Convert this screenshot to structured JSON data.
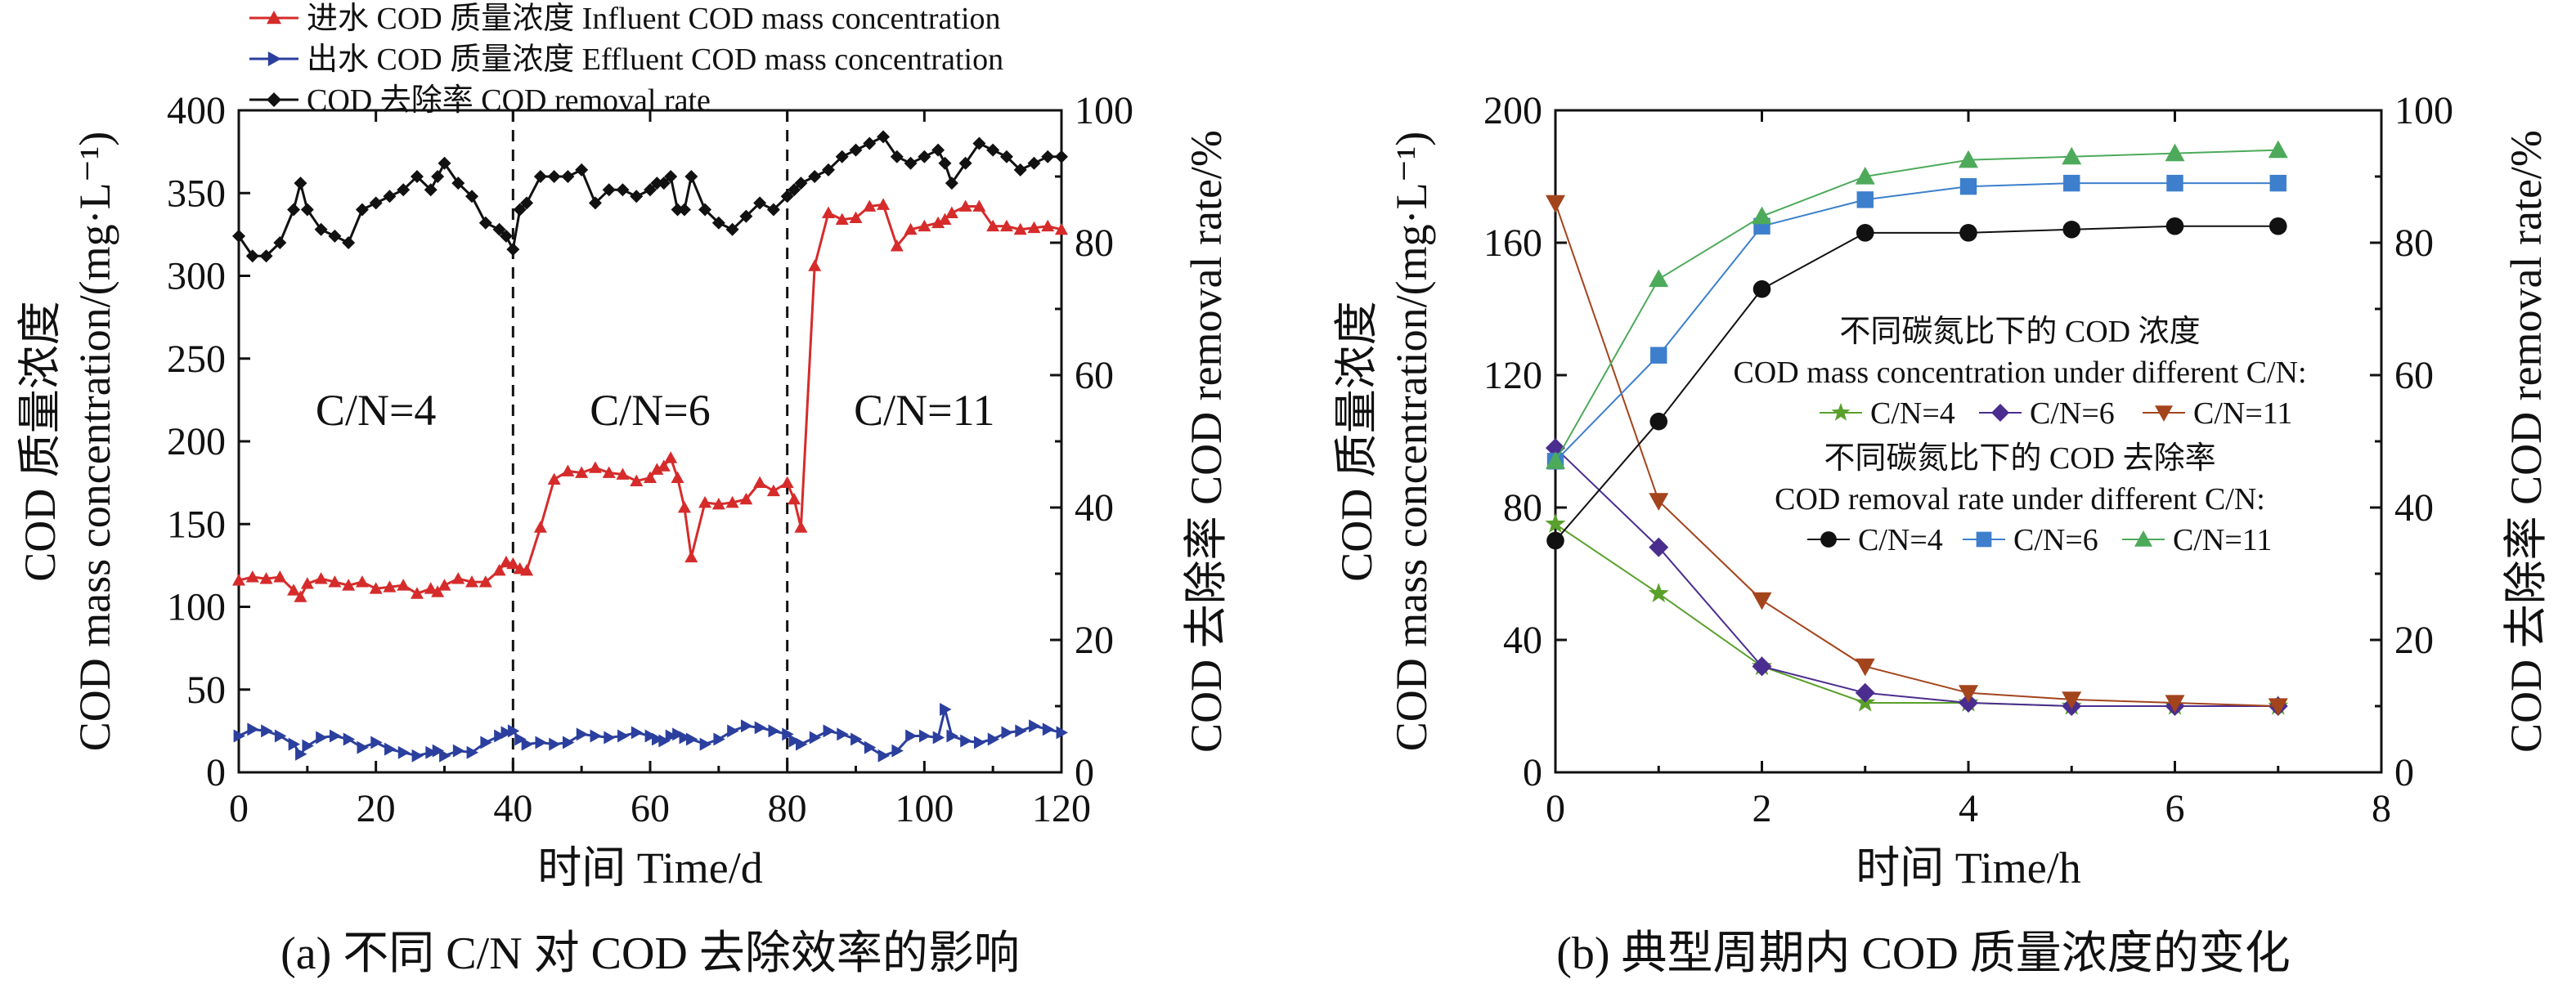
{
  "chart_data": [
    {
      "type": "line",
      "panel": "a",
      "caption": "(a) 不同 C/N 对 COD 去除效率的影响",
      "xlabel": "时间 Time/d",
      "ylabel_left_cn": "COD 质量浓度",
      "ylabel_left_en": "COD mass concentration/(mg·L⁻¹)",
      "ylabel_right": "COD 去除率 COD removal rate/%",
      "xlim": [
        0,
        120
      ],
      "ylim_left": [
        0,
        400
      ],
      "ylim_right": [
        0,
        100
      ],
      "xticks": [
        "0",
        "20",
        "40",
        "60",
        "80",
        "100",
        "120"
      ],
      "yticks_left": [
        "0",
        "50",
        "100",
        "150",
        "200",
        "250",
        "300",
        "350",
        "400"
      ],
      "yticks_right": [
        "0",
        "20",
        "40",
        "60",
        "80",
        "100"
      ],
      "phase_boundaries": [
        40,
        80
      ],
      "phase_labels": [
        {
          "text": "C/N=4",
          "x": 20
        },
        {
          "text": "C/N=6",
          "x": 60
        },
        {
          "text": "C/N=11",
          "x": 100
        }
      ],
      "legend": [
        {
          "name": "进水 COD 质量浓度 Influent COD mass concentration",
          "color": "#d62b2b",
          "marker": "triangle-up"
        },
        {
          "name": "出水 COD 质量浓度 Effluent COD mass concentration",
          "color": "#2b3f9e",
          "marker": "triangle-right"
        },
        {
          "name": "COD 去除率 COD removal rate",
          "color": "#111111",
          "marker": "diamond"
        }
      ],
      "x": [
        0,
        2,
        4,
        6,
        8,
        9,
        10,
        12,
        14,
        16,
        18,
        20,
        22,
        24,
        26,
        28,
        29,
        30,
        32,
        34,
        36,
        38,
        39,
        40,
        41,
        42,
        44,
        46,
        48,
        50,
        52,
        54,
        56,
        58,
        60,
        61,
        62,
        63,
        64,
        65,
        66,
        68,
        70,
        72,
        74,
        76,
        78,
        80,
        81,
        82,
        84,
        86,
        88,
        90,
        92,
        94,
        96,
        98,
        100,
        102,
        103,
        104,
        106,
        108,
        110,
        112,
        114,
        116,
        118,
        120
      ],
      "series": [
        {
          "name": "进水 COD 质量浓度 Influent COD mass concentration",
          "axis": "left",
          "color": "#d62b2b",
          "values": [
            116,
            118,
            117,
            118,
            110,
            106,
            114,
            117,
            115,
            113,
            115,
            111,
            112,
            113,
            108,
            111,
            109,
            113,
            117,
            115,
            115,
            122,
            127,
            126,
            123,
            122,
            148,
            177,
            182,
            181,
            184,
            181,
            180,
            176,
            178,
            183,
            185,
            190,
            178,
            160,
            130,
            163,
            162,
            163,
            165,
            175,
            170,
            175,
            165,
            148,
            306,
            338,
            334,
            335,
            342,
            343,
            318,
            328,
            330,
            332,
            334,
            338,
            342,
            342,
            330,
            330,
            328,
            329,
            330,
            328
          ]
        },
        {
          "name": "出水 COD 质量浓度 Effluent COD mass concentration",
          "axis": "left",
          "color": "#2b3f9e",
          "values": [
            22,
            26,
            25,
            22,
            17,
            11,
            16,
            21,
            22,
            20,
            15,
            18,
            14,
            12,
            10,
            12,
            13,
            10,
            13,
            12,
            18,
            22,
            24,
            25,
            20,
            17,
            18,
            17,
            18,
            23,
            22,
            21,
            22,
            24,
            22,
            20,
            19,
            22,
            23,
            21,
            20,
            17,
            20,
            25,
            28,
            27,
            25,
            23,
            19,
            17,
            21,
            25,
            23,
            20,
            15,
            10,
            13,
            22,
            22,
            21,
            38,
            22,
            19,
            18,
            20,
            24,
            25,
            28,
            26,
            24
          ]
        },
        {
          "name": "COD 去除率 COD removal rate",
          "axis": "right",
          "color": "#111111",
          "values": [
            81,
            78,
            78,
            80,
            85,
            89,
            85,
            82,
            81,
            80,
            85,
            86,
            87,
            88,
            90,
            88,
            90,
            92,
            89,
            87,
            83,
            82,
            81,
            79,
            85,
            86,
            90,
            90,
            90,
            91,
            86,
            88,
            88,
            87,
            88,
            89,
            89,
            90,
            85,
            85,
            90,
            85,
            83,
            82,
            84,
            86,
            85,
            87,
            88,
            89,
            90,
            91,
            93,
            94,
            95,
            96,
            93,
            92,
            93,
            94,
            92,
            89,
            92,
            95,
            94,
            93,
            91,
            92,
            93,
            93
          ]
        }
      ]
    },
    {
      "type": "line",
      "panel": "b",
      "caption": "(b) 典型周期内 COD 质量浓度的变化",
      "xlabel": "时间 Time/h",
      "ylabel_left_cn": "COD 质量浓度",
      "ylabel_left_en": "COD mass concentration/(mg·L⁻¹)",
      "ylabel_right": "COD 去除率 COD removal rate/%",
      "xlim": [
        0,
        8
      ],
      "ylim_left": [
        0,
        200
      ],
      "ylim_right": [
        0,
        100
      ],
      "xticks": [
        "0",
        "2",
        "4",
        "6",
        "8"
      ],
      "yticks_left": [
        "0",
        "40",
        "80",
        "120",
        "160",
        "200"
      ],
      "yticks_right": [
        "0",
        "20",
        "40",
        "60",
        "80",
        "100"
      ],
      "legend_group_1_title_cn": "不同碳氮比下的 COD 浓度",
      "legend_group_1_title_en": "COD mass concentration under different C/N:",
      "legend_group_2_title_cn": "不同碳氮比下的 COD 去除率",
      "legend_group_2_title_en": "COD removal rate under different C/N:",
      "x": [
        0,
        1,
        2,
        3,
        4,
        5,
        6,
        7
      ],
      "series": [
        {
          "name": "C/N=4",
          "group": "concentration",
          "axis": "left",
          "color": "#5aa02c",
          "marker": "star",
          "values": [
            75,
            54,
            32,
            21,
            21,
            20,
            20,
            20
          ]
        },
        {
          "name": "C/N=6",
          "group": "concentration",
          "axis": "left",
          "color": "#4b2d8f",
          "marker": "diamond",
          "values": [
            98,
            68,
            32,
            24,
            21,
            20,
            20,
            20
          ]
        },
        {
          "name": "C/N=11",
          "group": "concentration",
          "axis": "left",
          "color": "#a3441c",
          "marker": "triangle-down",
          "values": [
            172,
            82,
            52,
            32,
            24,
            22,
            21,
            20
          ]
        },
        {
          "name": "C/N=4",
          "group": "removal",
          "axis": "right",
          "color": "#111111",
          "marker": "circle",
          "values": [
            35,
            53,
            73,
            81.5,
            81.5,
            82,
            82.5,
            82.5
          ]
        },
        {
          "name": "C/N=6",
          "group": "removal",
          "axis": "right",
          "color": "#3d7fcc",
          "marker": "square",
          "values": [
            47,
            63,
            82.5,
            86.5,
            88.5,
            89,
            89,
            89
          ]
        },
        {
          "name": "C/N=11",
          "group": "removal",
          "axis": "right",
          "color": "#4daa5a",
          "marker": "triangle-up",
          "values": [
            47,
            74.5,
            84,
            90,
            92.5,
            93,
            93.5,
            94
          ]
        }
      ]
    }
  ]
}
